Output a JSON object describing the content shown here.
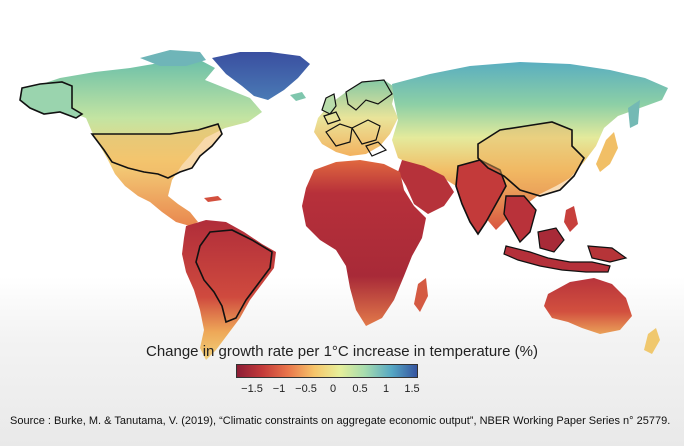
{
  "legend": {
    "title": "Change in growth rate per 1°C increase in temperature (%)",
    "ticks": [
      "−1.5",
      "−1",
      "−0.5",
      "0",
      "0.5",
      "1",
      "1.5"
    ],
    "range": [
      -1.5,
      1.5
    ],
    "colors": [
      "#8c1d35",
      "#c33a3a",
      "#e9744a",
      "#f6c56a",
      "#e7ef9a",
      "#a6dcae",
      "#55a7c4",
      "#3554a0"
    ]
  },
  "source": "Source : Burke, M. & Tanutama, V. (2019), “Climatic constraints on aggregate economic output”, NBER Working Paper Series n° 25779."
}
